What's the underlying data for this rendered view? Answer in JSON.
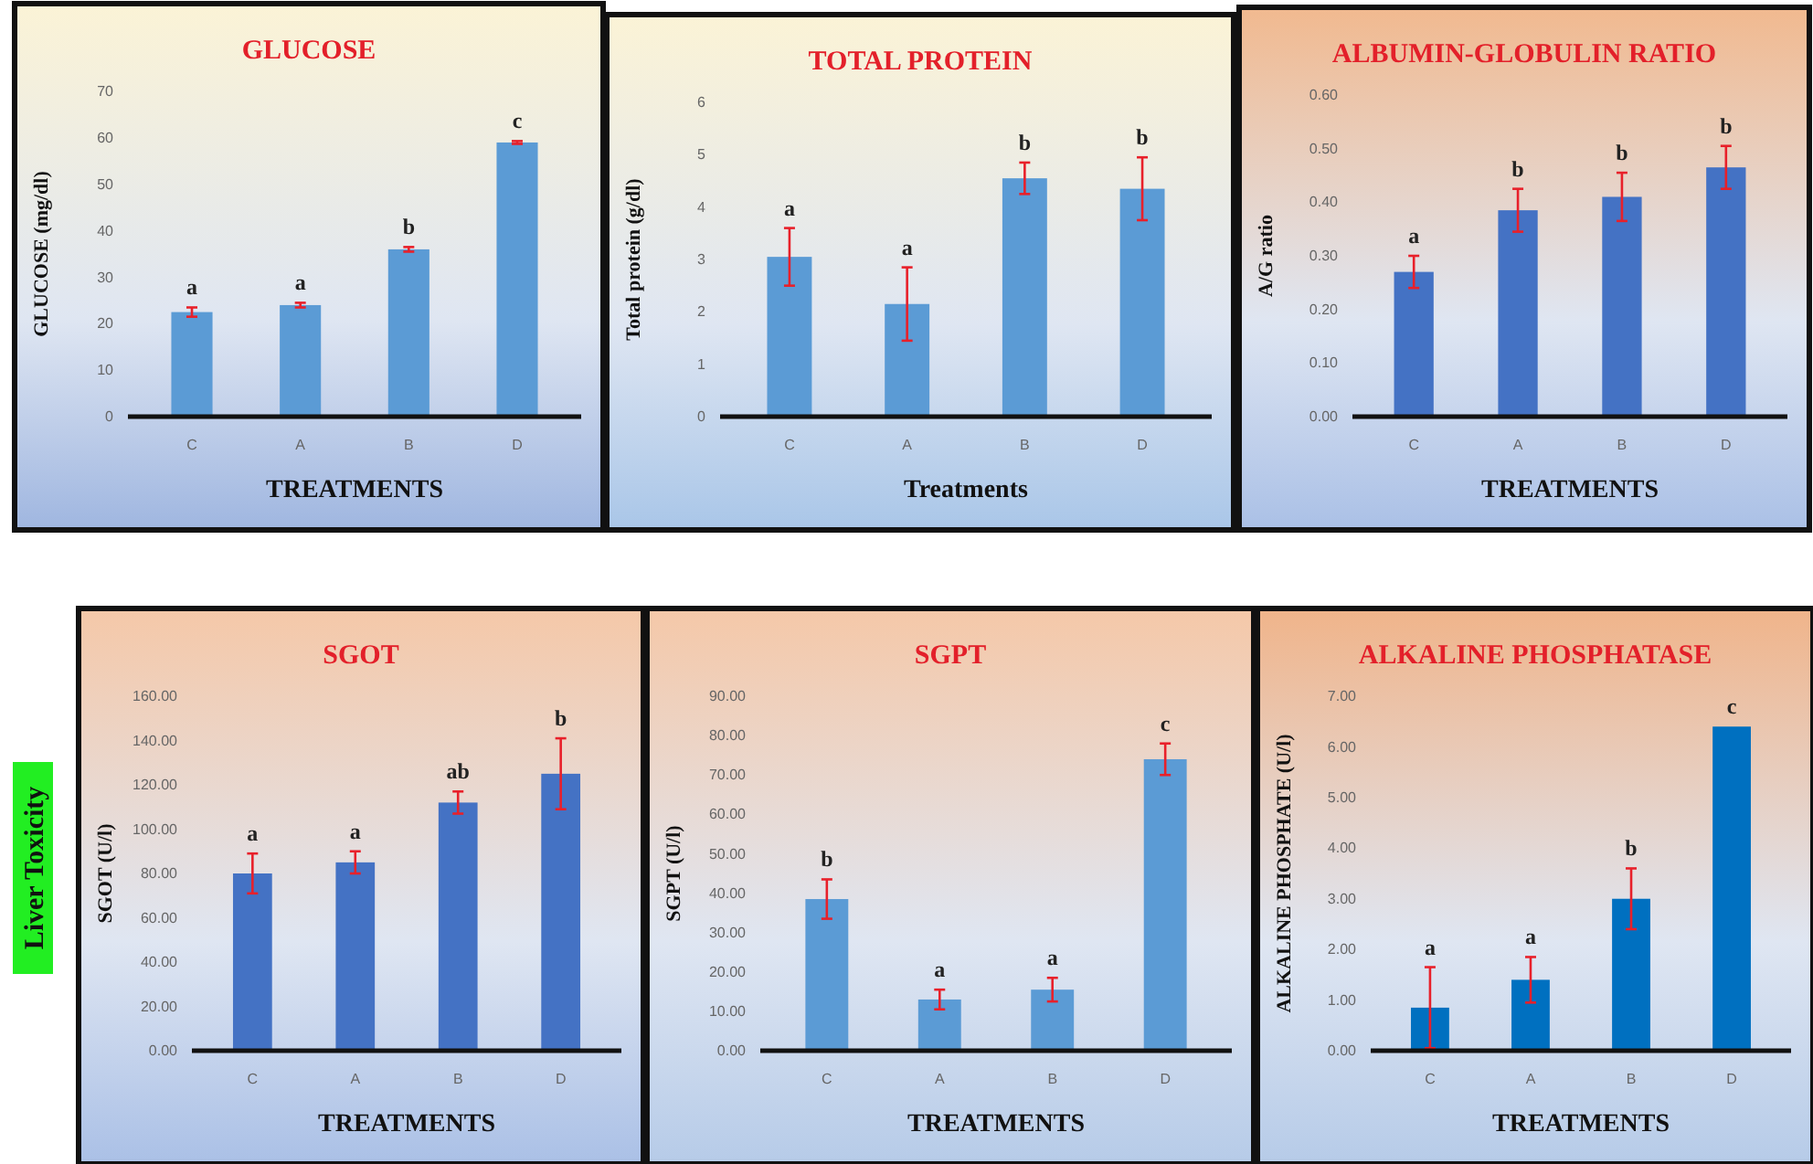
{
  "chart_data": [
    {
      "type": "bar",
      "title": "GLUCOSE",
      "xlabel": "TREATMENTS",
      "ylabel": "GLUCOSE (mg/dl)",
      "categories": [
        "C",
        "A",
        "B",
        "D"
      ],
      "values": [
        22.5,
        24,
        36,
        59
      ],
      "errors": [
        1,
        0.5,
        0.5,
        0.3
      ],
      "color": "#5b9bd5",
      "ylim": [
        0,
        70
      ],
      "yticks": [
        0,
        10,
        20,
        30,
        40,
        50,
        60,
        70
      ],
      "annotations": [
        "a",
        "a",
        "b",
        "c"
      ]
    },
    {
      "type": "bar",
      "title": "TOTAL PROTEIN",
      "xlabel": "Treatments",
      "ylabel": "Total protein (g/dl)",
      "categories": [
        "C",
        "A",
        "B",
        "D"
      ],
      "values": [
        3.05,
        2.15,
        4.55,
        4.35
      ],
      "errors": [
        0.55,
        0.7,
        0.3,
        0.6
      ],
      "color": "#5b9bd5",
      "ylim": [
        0,
        6
      ],
      "yticks": [
        0,
        1,
        2,
        3,
        4,
        5,
        6
      ],
      "annotations": [
        "a",
        "a",
        "b",
        "b"
      ]
    },
    {
      "type": "bar",
      "title": "ALBUMIN-GLOBULIN RATIO",
      "xlabel": "TREATMENTS",
      "ylabel": "A/G ratio",
      "categories": [
        "C",
        "A",
        "B",
        "D"
      ],
      "values": [
        0.27,
        0.385,
        0.41,
        0.465
      ],
      "errors": [
        0.03,
        0.04,
        0.045,
        0.04
      ],
      "color": "#4472c4",
      "ylim": [
        0,
        0.6
      ],
      "yticks": [
        {
          "value": 0,
          "label": "0.00"
        },
        {
          "value": 0.1,
          "label": "0.10"
        },
        {
          "value": 0.2,
          "label": "0.20"
        },
        {
          "value": 0.3,
          "label": "0.30"
        },
        {
          "value": 0.4,
          "label": "0.40"
        },
        {
          "value": 0.5,
          "label": "0.50"
        },
        {
          "value": 0.6,
          "label": "0.60"
        }
      ],
      "annotations": [
        "a",
        "b",
        "b",
        "b"
      ]
    },
    {
      "type": "bar",
      "title": "SGOT",
      "xlabel": "TREATMENTS",
      "ylabel": "SGOT (U/l)",
      "categories": [
        "C",
        "A",
        "B",
        "D"
      ],
      "values": [
        80,
        85,
        112,
        125
      ],
      "errors": [
        9,
        5,
        5,
        16
      ],
      "color": "#4472c4",
      "ylim": [
        0,
        160
      ],
      "yticks": [
        {
          "value": 0,
          "label": "0.00"
        },
        {
          "value": 20,
          "label": "20.00"
        },
        {
          "value": 40,
          "label": "40.00"
        },
        {
          "value": 60,
          "label": "60.00"
        },
        {
          "value": 80,
          "label": "80.00"
        },
        {
          "value": 100,
          "label": "100.00"
        },
        {
          "value": 120,
          "label": "120.00"
        },
        {
          "value": 140,
          "label": "140.00"
        },
        {
          "value": 160,
          "label": "160.00"
        }
      ],
      "annotations": [
        "Liver Toxicity",
        "a",
        "a",
        "ab",
        "b"
      ]
    },
    {
      "type": "bar",
      "title": "SGPT",
      "xlabel": "TREATMENTS",
      "ylabel": "SGPT (U/l)",
      "categories": [
        "C",
        "A",
        "B",
        "D"
      ],
      "values": [
        38.5,
        13,
        15.5,
        74
      ],
      "errors": [
        5,
        2.5,
        3,
        4
      ],
      "color": "#5b9bd5",
      "ylim": [
        0,
        90
      ],
      "yticks": [
        {
          "value": 0,
          "label": "0.00"
        },
        {
          "value": 10,
          "label": "10.00"
        },
        {
          "value": 20,
          "label": "20.00"
        },
        {
          "value": 30,
          "label": "30.00"
        },
        {
          "value": 40,
          "label": "40.00"
        },
        {
          "value": 50,
          "label": "50.00"
        },
        {
          "value": 60,
          "label": "60.00"
        },
        {
          "value": 70,
          "label": "70.00"
        },
        {
          "value": 80,
          "label": "80.00"
        },
        {
          "value": 90,
          "label": "90.00"
        }
      ],
      "annotations": [
        "b",
        "a",
        "a",
        "c"
      ]
    },
    {
      "type": "bar",
      "title": "ALKALINE PHOSPHATASE",
      "xlabel": "TREATMENTS",
      "ylabel": "ALKALINE PHOSPHATE (U/l)",
      "categories": [
        "C",
        "A",
        "B",
        "D"
      ],
      "values": [
        0.85,
        1.4,
        3.0,
        6.4
      ],
      "errors": [
        0.8,
        0.45,
        0.6,
        null
      ],
      "color": "#0070c0",
      "ylim": [
        0,
        7
      ],
      "yticks": [
        {
          "value": 0,
          "label": "0.00"
        },
        {
          "value": 1,
          "label": "1.00"
        },
        {
          "value": 2,
          "label": "2.00"
        },
        {
          "value": 3,
          "label": "3.00"
        },
        {
          "value": 4,
          "label": "4.00"
        },
        {
          "value": 5,
          "label": "5.00"
        },
        {
          "value": 6,
          "label": "6.00"
        },
        {
          "value": 7,
          "label": "7.00"
        }
      ],
      "annotations": [
        "a",
        "a",
        "b",
        "c"
      ]
    }
  ]
}
